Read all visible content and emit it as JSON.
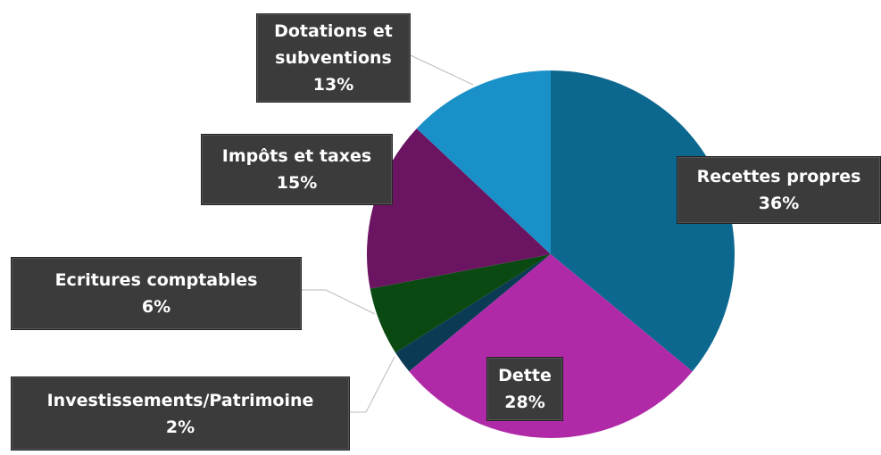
{
  "chart_data": {
    "type": "pie",
    "categories": [
      "Recettes propres",
      "Dette",
      "Investissements/Patrimoine",
      "Ecritures comptables",
      "Impôts et taxes",
      "Dotations et subventions"
    ],
    "values": [
      36,
      28,
      2,
      6,
      15,
      13
    ],
    "value_labels": [
      "36%",
      "28%",
      "2%",
      "6%",
      "15%",
      "13%"
    ],
    "colors": [
      "#0d6890",
      "#b02aa8",
      "#0b3a55",
      "#0a4a12",
      "#6b1562",
      "#1a90c8"
    ]
  }
}
